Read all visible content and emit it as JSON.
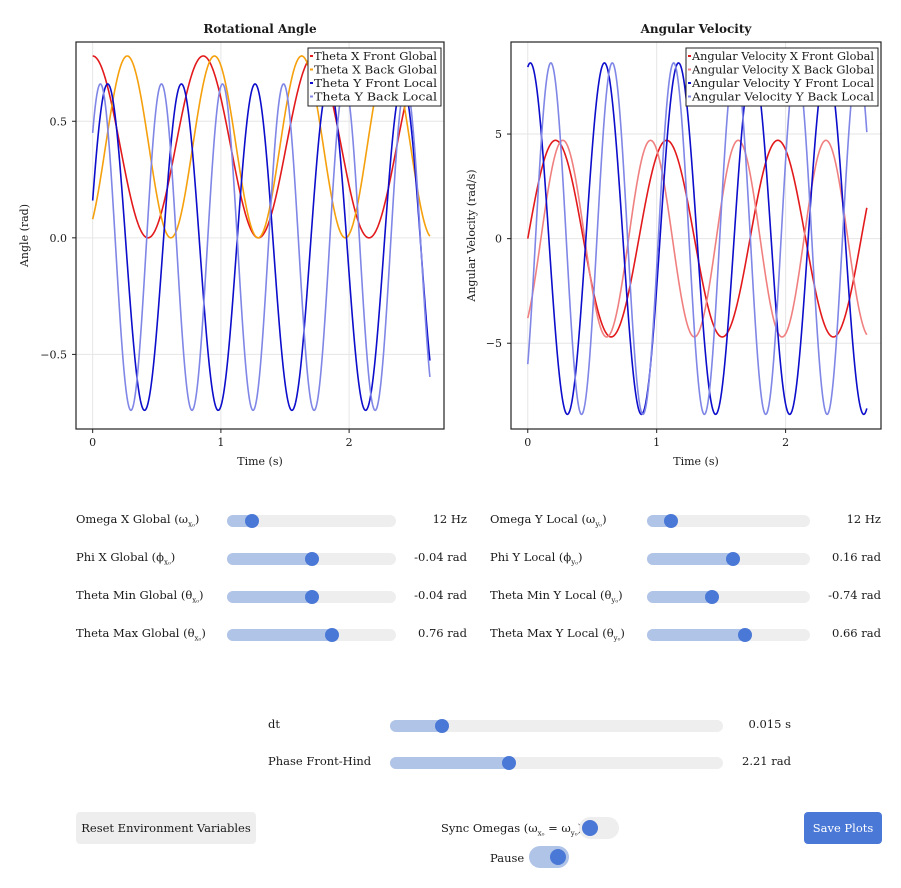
{
  "charts": {
    "chart_data": [
      {
        "type": "line",
        "title": "Rotational Angle",
        "xlabel": "Time (s)",
        "ylabel": "Angle (rad)",
        "xlim": [
          -0.13,
          2.74
        ],
        "ylim": [
          -0.82,
          0.84
        ],
        "xticks": [
          0,
          1,
          2
        ],
        "yticks": [
          -0.5,
          0.0,
          0.5
        ],
        "ytick_labels": [
          "−0.5",
          "0.0",
          "0.5"
        ],
        "xtick_labels": [
          "0",
          "1",
          "2"
        ],
        "legend_position": "top-right",
        "grid": true,
        "series": [
          {
            "name": "Theta X Front Global",
            "color": "#e31a1c",
            "x_start": 0,
            "x_end": 2.63,
            "y_first": 0.78,
            "y_peak": 0.78,
            "y_trough": 0.0,
            "freq_hz": 1.16
          },
          {
            "name": "Theta X Back Global",
            "color": "#f5a00c",
            "x_start": 0,
            "x_end": 2.63,
            "y_first": 0.08,
            "y_peak": 0.78,
            "y_trough": 0.0,
            "freq_hz": 1.47
          },
          {
            "name": "Theta Y Front Local",
            "color": "#0d0dcc",
            "x_start": 0,
            "x_end": 2.63,
            "y_first": 0.16,
            "y_peak": 0.66,
            "y_trough": -0.74,
            "freq_hz": 1.74
          },
          {
            "name": "Theta Y Back Local",
            "color": "#7f86e6",
            "x_start": 0,
            "x_end": 2.63,
            "y_first": 0.45,
            "y_peak": 0.66,
            "y_trough": -0.74,
            "freq_hz": 2.1
          }
        ]
      },
      {
        "type": "line",
        "title": "Angular Velocity",
        "xlabel": "Time (s)",
        "ylabel": "Angular Velocity (rad/s)",
        "xlim": [
          -0.13,
          2.74
        ],
        "ylim": [
          -9.1,
          9.4
        ],
        "xticks": [
          0,
          1,
          2
        ],
        "yticks": [
          -5,
          0,
          5
        ],
        "ytick_labels": [
          "−5",
          "0",
          "5"
        ],
        "xtick_labels": [
          "0",
          "1",
          "2"
        ],
        "legend_position": "top-right",
        "grid": true,
        "series": [
          {
            "name": "Angular Velocity X Front Global",
            "color": "#e31a1c",
            "x_start": 0,
            "x_end": 2.63,
            "y_first": 0.0,
            "amplitude": 4.7,
            "freq_hz": 1.16
          },
          {
            "name": "Angular Velocity X Back Global",
            "color": "#f08080",
            "x_start": 0,
            "x_end": 2.63,
            "y_first": -3.8,
            "amplitude": 4.7,
            "freq_hz": 1.47
          },
          {
            "name": "Angular Velocity Y Front Local",
            "color": "#0d0dcc",
            "x_start": 0,
            "x_end": 2.63,
            "y_first": 8.2,
            "amplitude": 8.4,
            "freq_hz": 1.74
          },
          {
            "name": "Angular Velocity Y Back Local",
            "color": "#7f86e6",
            "x_start": 0,
            "x_end": 2.63,
            "y_first": -6.0,
            "amplitude": 8.4,
            "freq_hz": 2.1
          }
        ]
      }
    ]
  },
  "sliders_left": [
    {
      "label": "Omega X Global (ω",
      "sub": "x₀",
      "label_end": ")",
      "value_text": "12 Hz",
      "fraction": 0.15
    },
    {
      "label": "Phi X Global (ϕ",
      "sub": "x₀",
      "label_end": ")",
      "value_text": "-0.04 rad",
      "fraction": 0.5
    },
    {
      "label": "Theta Min Global (θ",
      "sub": "x₀",
      "label_end": ")",
      "value_text": "-0.04 rad",
      "fraction": 0.5
    },
    {
      "label": "Theta Max Global (θ",
      "sub": "x₀",
      "label_end": ")",
      "value_text": "0.76 rad",
      "fraction": 0.62
    }
  ],
  "sliders_right": [
    {
      "label": "Omega Y Local (ω",
      "sub": "y₀",
      "label_end": ")",
      "value_text": "12 Hz",
      "fraction": 0.15
    },
    {
      "label": "Phi Y Local (ϕ",
      "sub": "y₀",
      "label_end": ")",
      "value_text": "0.16 rad",
      "fraction": 0.53
    },
    {
      "label": "Theta Min Y Local (θ",
      "sub": "y₀",
      "label_end": ")",
      "value_text": "-0.74 rad",
      "fraction": 0.4
    },
    {
      "label": "Theta Max Y Local (θ",
      "sub": "y₀",
      "label_end": ")",
      "value_text": "0.66 rad",
      "fraction": 0.6
    }
  ],
  "sliders_bottom": [
    {
      "label": "dt",
      "value_text": "0.015 s",
      "fraction": 0.155
    },
    {
      "label": "Phase Front-Hind",
      "value_text": "2.21 rad",
      "fraction": 0.357
    }
  ],
  "buttons": {
    "reset_label": "Reset Environment Variables",
    "save_label": "Save Plots"
  },
  "toggles": {
    "sync_label_prefix": "Sync Omegas (ω",
    "sync_sub1": "x₀",
    "sync_mid": " = ω",
    "sync_sub2": "y₀",
    "sync_label_end": ")",
    "sync_on": false,
    "pause_label": "Pause",
    "pause_on": true
  },
  "colors": {
    "accent": "#4a78d6",
    "accent_light": "#b0c4e8",
    "track": "#eeeeee"
  }
}
